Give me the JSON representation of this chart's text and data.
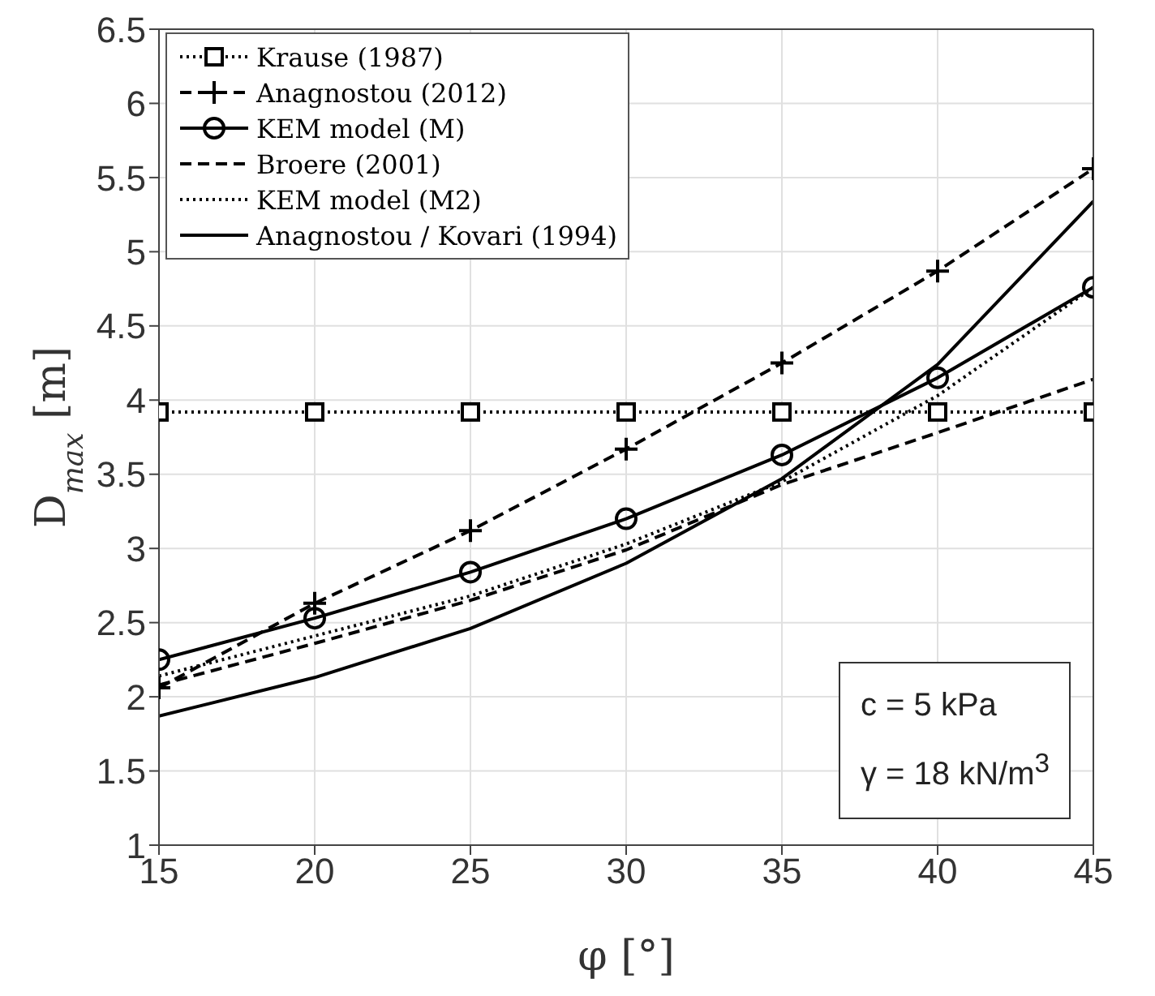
{
  "chart_data": {
    "type": "line",
    "xlabel": "φ [°]",
    "ylabel": "D$_{max}$ [m]",
    "x": [
      15,
      20,
      25,
      30,
      35,
      40,
      45
    ],
    "xlim": [
      15,
      45
    ],
    "xticks": [
      15,
      20,
      25,
      30,
      35,
      40,
      45
    ],
    "ylim": [
      1,
      6.5
    ],
    "yticks": [
      1,
      1.5,
      2,
      2.5,
      3,
      3.5,
      4,
      4.5,
      5,
      5.5,
      6,
      6.5
    ],
    "grid": true,
    "legend": "top left",
    "series": [
      {
        "name": "Krause (1987)",
        "color": "#000000",
        "marker": "square",
        "line_style": "dotted",
        "values": [
          3.92,
          3.92,
          3.92,
          3.92,
          3.92,
          3.92,
          3.92
        ]
      },
      {
        "name": "Anagnostou (2012)",
        "color": "#000000",
        "marker": "cross",
        "line_style": "dashed",
        "values": [
          2.06,
          2.63,
          3.12,
          3.67,
          4.25,
          4.87,
          5.56
        ]
      },
      {
        "name": "KEM model (M)",
        "color": "#000000",
        "marker": "circle",
        "line_style": "solid",
        "values": [
          2.25,
          2.53,
          2.84,
          3.2,
          3.63,
          4.15,
          4.76
        ]
      },
      {
        "name": "Broere (2001)",
        "color": "#000000",
        "marker": "none",
        "line_style": "dashed",
        "values": [
          2.08,
          2.36,
          2.65,
          2.99,
          3.43,
          3.78,
          4.14
        ]
      },
      {
        "name": "KEM model (M2)",
        "color": "#000000",
        "marker": "none",
        "line_style": "dotted",
        "values": [
          2.14,
          2.41,
          2.68,
          3.03,
          3.45,
          4.03,
          4.76
        ]
      },
      {
        "name": "Anagnostou / Kovari (1994)",
        "color": "#000000",
        "marker": "none",
        "line_style": "solid",
        "values": [
          1.87,
          2.13,
          2.46,
          2.9,
          3.47,
          4.24,
          5.34
        ]
      }
    ],
    "annotations": [
      "c = 5 kPa",
      "γ = 18 kN/m$^{3}$"
    ]
  }
}
